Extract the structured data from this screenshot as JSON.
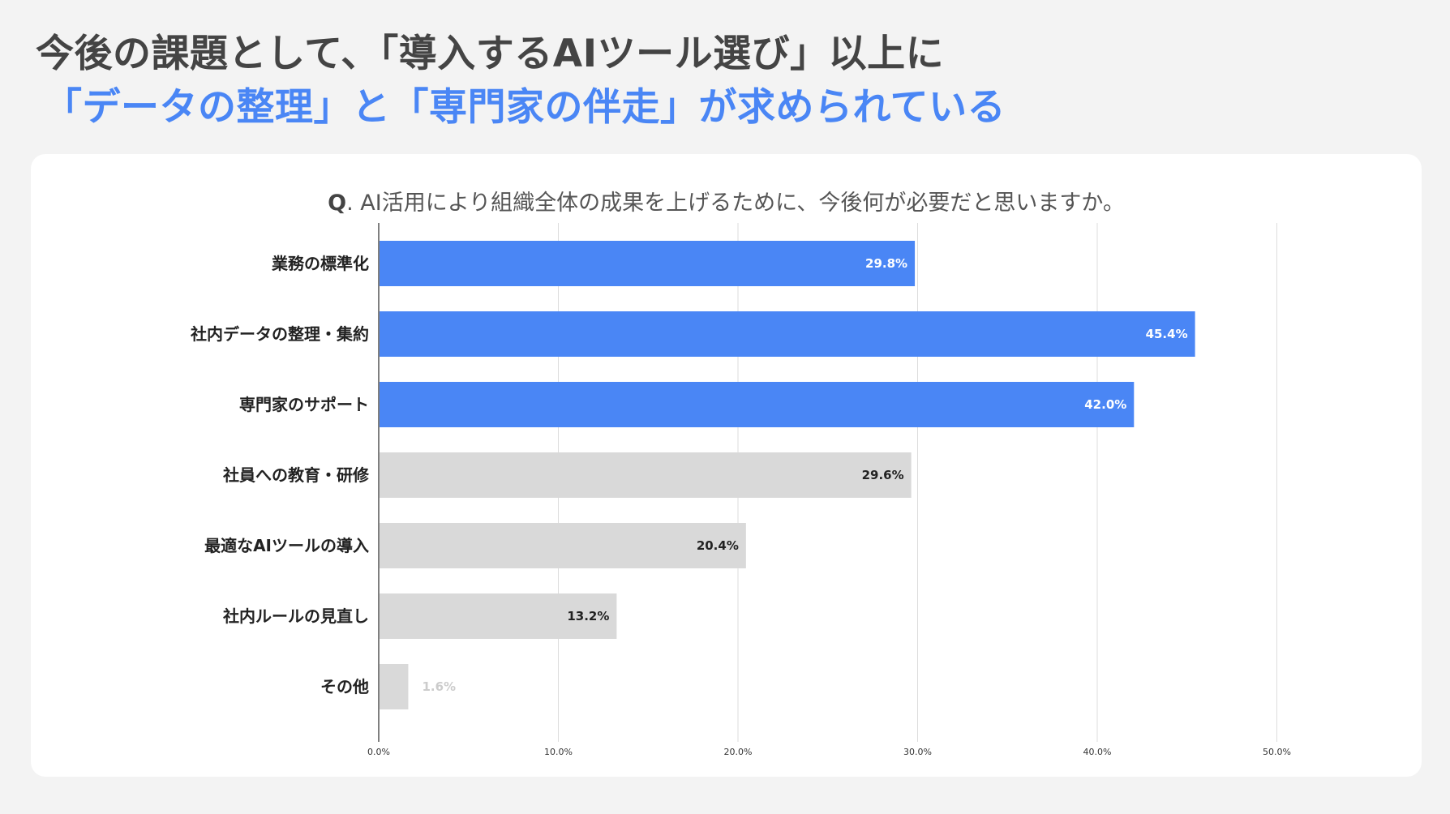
{
  "headline": {
    "line1": "今後の課題として、「導入するAIツール選び」以上に",
    "line2": "「データの整理」と「専門家の伴走」が求められている"
  },
  "question": {
    "prefix": "Q",
    "text": ". AI活用により組織全体の成果を上げるために、今後何が必要だと思いますか。"
  },
  "colors": {
    "highlight": "#4a86f5",
    "neutral": "#d9d9d9",
    "faint": "#ebebeb",
    "headline_accent": "#4a86f5"
  },
  "chart_data": {
    "type": "bar",
    "orientation": "horizontal",
    "title": "Q. AI活用により組織全体の成果を上げるために、今後何が必要だと思いますか。",
    "categories": [
      "業務の標準化",
      "社内データの整理・集約",
      "専門家のサポート",
      "社員への教育・研修",
      "最適なAIツールの導入",
      "社内ルールの見直し",
      "その他"
    ],
    "values": [
      29.8,
      45.4,
      42.0,
      29.6,
      20.4,
      13.2,
      1.6
    ],
    "value_labels": [
      "29.8%",
      "45.4%",
      "42.0%",
      "29.6%",
      "20.4%",
      "13.2%",
      "1.6%"
    ],
    "bar_colors": [
      "highlight",
      "highlight",
      "highlight",
      "neutral",
      "neutral",
      "neutral",
      "neutral"
    ],
    "xlim": [
      0,
      50
    ],
    "xticks": [
      0,
      10,
      20,
      30,
      40,
      50
    ],
    "xtick_labels": [
      "0.0%",
      "10.0%",
      "20.0%",
      "30.0%",
      "40.0%",
      "50.0%"
    ],
    "xlabel": "",
    "ylabel": "",
    "grid": true
  }
}
